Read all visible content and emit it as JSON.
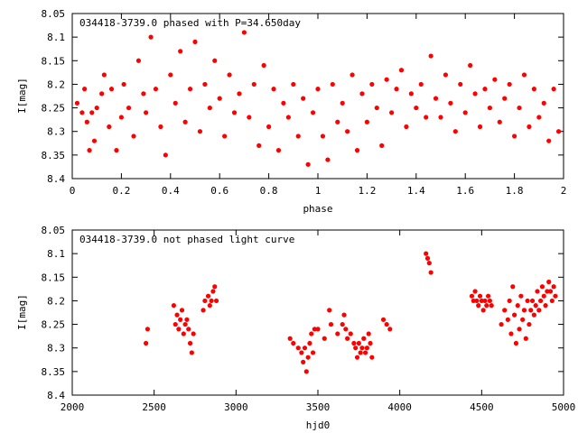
{
  "chart_data": [
    {
      "type": "scatter",
      "title": "034418-3739.0 phased with P=34.650day",
      "xlabel": "phase",
      "ylabel": "I[mag]",
      "xlim": [
        0,
        2
      ],
      "ylim": [
        8.4,
        8.05
      ],
      "y_inverted": true,
      "x_ticks": [
        "0",
        "0.2",
        "0.4",
        "0.6",
        "0.8",
        "1",
        "1.2",
        "1.4",
        "1.6",
        "1.8",
        "2"
      ],
      "y_ticks": [
        "8.05",
        "8.1",
        "8.15",
        "8.2",
        "8.25",
        "8.3",
        "8.35",
        "8.4"
      ],
      "marker_color": "#ff0000",
      "grid": false,
      "series": [
        {
          "points": [
            [
              0.02,
              8.24
            ],
            [
              0.04,
              8.26
            ],
            [
              0.05,
              8.21
            ],
            [
              0.06,
              8.28
            ],
            [
              0.07,
              8.34
            ],
            [
              0.08,
              8.26
            ],
            [
              0.09,
              8.32
            ],
            [
              0.1,
              8.25
            ],
            [
              0.12,
              8.22
            ],
            [
              0.13,
              8.18
            ],
            [
              0.15,
              8.29
            ],
            [
              0.16,
              8.21
            ],
            [
              0.18,
              8.34
            ],
            [
              0.2,
              8.27
            ],
            [
              0.21,
              8.2
            ],
            [
              0.23,
              8.25
            ],
            [
              0.25,
              8.31
            ],
            [
              0.27,
              8.15
            ],
            [
              0.29,
              8.22
            ],
            [
              0.3,
              8.26
            ],
            [
              0.32,
              8.1
            ],
            [
              0.34,
              8.21
            ],
            [
              0.36,
              8.29
            ],
            [
              0.38,
              8.35
            ],
            [
              0.4,
              8.18
            ],
            [
              0.42,
              8.24
            ],
            [
              0.44,
              8.13
            ],
            [
              0.46,
              8.28
            ],
            [
              0.48,
              8.21
            ],
            [
              0.5,
              8.11
            ],
            [
              0.52,
              8.3
            ],
            [
              0.54,
              8.2
            ],
            [
              0.56,
              8.25
            ],
            [
              0.58,
              8.15
            ],
            [
              0.6,
              8.23
            ],
            [
              0.62,
              8.31
            ],
            [
              0.64,
              8.18
            ],
            [
              0.66,
              8.26
            ],
            [
              0.68,
              8.22
            ],
            [
              0.7,
              8.09
            ],
            [
              0.72,
              8.27
            ],
            [
              0.74,
              8.2
            ],
            [
              0.76,
              8.33
            ],
            [
              0.78,
              8.16
            ],
            [
              0.8,
              8.29
            ],
            [
              0.82,
              8.21
            ],
            [
              0.84,
              8.34
            ],
            [
              0.86,
              8.24
            ],
            [
              0.88,
              8.27
            ],
            [
              0.9,
              8.2
            ],
            [
              0.92,
              8.31
            ],
            [
              0.94,
              8.23
            ],
            [
              0.96,
              8.37
            ],
            [
              0.98,
              8.26
            ],
            [
              1.0,
              8.21
            ],
            [
              1.02,
              8.31
            ],
            [
              1.04,
              8.36
            ],
            [
              1.06,
              8.2
            ],
            [
              1.08,
              8.28
            ],
            [
              1.1,
              8.24
            ],
            [
              1.12,
              8.3
            ],
            [
              1.14,
              8.18
            ],
            [
              1.16,
              8.34
            ],
            [
              1.18,
              8.22
            ],
            [
              1.2,
              8.28
            ],
            [
              1.22,
              8.2
            ],
            [
              1.24,
              8.25
            ],
            [
              1.26,
              8.33
            ],
            [
              1.28,
              8.19
            ],
            [
              1.3,
              8.26
            ],
            [
              1.32,
              8.21
            ],
            [
              1.34,
              8.17
            ],
            [
              1.36,
              8.29
            ],
            [
              1.38,
              8.22
            ],
            [
              1.4,
              8.25
            ],
            [
              1.42,
              8.2
            ],
            [
              1.44,
              8.27
            ],
            [
              1.46,
              8.14
            ],
            [
              1.48,
              8.23
            ],
            [
              1.5,
              8.27
            ],
            [
              1.52,
              8.18
            ],
            [
              1.54,
              8.24
            ],
            [
              1.56,
              8.3
            ],
            [
              1.58,
              8.2
            ],
            [
              1.6,
              8.26
            ],
            [
              1.62,
              8.16
            ],
            [
              1.64,
              8.22
            ],
            [
              1.66,
              8.29
            ],
            [
              1.68,
              8.21
            ],
            [
              1.7,
              8.25
            ],
            [
              1.72,
              8.19
            ],
            [
              1.74,
              8.28
            ],
            [
              1.76,
              8.23
            ],
            [
              1.78,
              8.2
            ],
            [
              1.8,
              8.31
            ],
            [
              1.82,
              8.25
            ],
            [
              1.84,
              8.18
            ],
            [
              1.86,
              8.29
            ],
            [
              1.88,
              8.21
            ],
            [
              1.9,
              8.27
            ],
            [
              1.92,
              8.24
            ],
            [
              1.94,
              8.32
            ],
            [
              1.96,
              8.21
            ],
            [
              1.98,
              8.3
            ]
          ]
        }
      ]
    },
    {
      "type": "scatter",
      "title": "034418-3739.0 not phased light curve",
      "xlabel": "hjd0",
      "ylabel": "I[mag]",
      "xlim": [
        2000,
        5000
      ],
      "ylim": [
        8.4,
        8.05
      ],
      "y_inverted": true,
      "x_ticks": [
        "2000",
        "2500",
        "3000",
        "3500",
        "4000",
        "4500",
        "5000"
      ],
      "y_ticks": [
        "8.05",
        "8.1",
        "8.15",
        "8.2",
        "8.25",
        "8.3",
        "8.35",
        "8.4"
      ],
      "marker_color": "#ff0000",
      "grid": false,
      "series": [
        {
          "points": [
            [
              2450,
              8.29
            ],
            [
              2460,
              8.26
            ],
            [
              2620,
              8.21
            ],
            [
              2630,
              8.25
            ],
            [
              2640,
              8.23
            ],
            [
              2650,
              8.26
            ],
            [
              2660,
              8.24
            ],
            [
              2670,
              8.22
            ],
            [
              2680,
              8.27
            ],
            [
              2690,
              8.25
            ],
            [
              2700,
              8.24
            ],
            [
              2710,
              8.26
            ],
            [
              2720,
              8.29
            ],
            [
              2730,
              8.31
            ],
            [
              2740,
              8.27
            ],
            [
              2800,
              8.22
            ],
            [
              2810,
              8.2
            ],
            [
              2830,
              8.19
            ],
            [
              2840,
              8.21
            ],
            [
              2850,
              8.2
            ],
            [
              2860,
              8.18
            ],
            [
              2870,
              8.17
            ],
            [
              2880,
              8.2
            ],
            [
              3330,
              8.28
            ],
            [
              3350,
              8.29
            ],
            [
              3380,
              8.3
            ],
            [
              3400,
              8.31
            ],
            [
              3410,
              8.33
            ],
            [
              3420,
              8.3
            ],
            [
              3430,
              8.35
            ],
            [
              3440,
              8.32
            ],
            [
              3450,
              8.29
            ],
            [
              3460,
              8.27
            ],
            [
              3470,
              8.31
            ],
            [
              3480,
              8.26
            ],
            [
              3500,
              8.26
            ],
            [
              3540,
              8.28
            ],
            [
              3570,
              8.22
            ],
            [
              3580,
              8.25
            ],
            [
              3620,
              8.27
            ],
            [
              3650,
              8.25
            ],
            [
              3660,
              8.23
            ],
            [
              3670,
              8.26
            ],
            [
              3680,
              8.28
            ],
            [
              3700,
              8.27
            ],
            [
              3720,
              8.29
            ],
            [
              3730,
              8.3
            ],
            [
              3740,
              8.32
            ],
            [
              3750,
              8.29
            ],
            [
              3760,
              8.31
            ],
            [
              3770,
              8.3
            ],
            [
              3780,
              8.28
            ],
            [
              3790,
              8.31
            ],
            [
              3800,
              8.3
            ],
            [
              3810,
              8.27
            ],
            [
              3820,
              8.29
            ],
            [
              3830,
              8.32
            ],
            [
              3900,
              8.24
            ],
            [
              3920,
              8.25
            ],
            [
              3940,
              8.26
            ],
            [
              4160,
              8.1
            ],
            [
              4170,
              8.11
            ],
            [
              4180,
              8.12
            ],
            [
              4190,
              8.14
            ],
            [
              4440,
              8.19
            ],
            [
              4450,
              8.2
            ],
            [
              4460,
              8.18
            ],
            [
              4470,
              8.2
            ],
            [
              4480,
              8.21
            ],
            [
              4490,
              8.19
            ],
            [
              4500,
              8.2
            ],
            [
              4510,
              8.22
            ],
            [
              4520,
              8.2
            ],
            [
              4530,
              8.21
            ],
            [
              4540,
              8.19
            ],
            [
              4550,
              8.2
            ],
            [
              4560,
              8.21
            ],
            [
              4620,
              8.25
            ],
            [
              4640,
              8.22
            ],
            [
              4660,
              8.24
            ],
            [
              4670,
              8.2
            ],
            [
              4680,
              8.27
            ],
            [
              4690,
              8.17
            ],
            [
              4700,
              8.23
            ],
            [
              4710,
              8.29
            ],
            [
              4720,
              8.21
            ],
            [
              4730,
              8.26
            ],
            [
              4740,
              8.19
            ],
            [
              4750,
              8.24
            ],
            [
              4760,
              8.22
            ],
            [
              4770,
              8.28
            ],
            [
              4780,
              8.2
            ],
            [
              4790,
              8.25
            ],
            [
              4800,
              8.22
            ],
            [
              4810,
              8.2
            ],
            [
              4820,
              8.23
            ],
            [
              4830,
              8.21
            ],
            [
              4840,
              8.18
            ],
            [
              4850,
              8.22
            ],
            [
              4860,
              8.2
            ],
            [
              4870,
              8.17
            ],
            [
              4880,
              8.19
            ],
            [
              4890,
              8.21
            ],
            [
              4900,
              8.18
            ],
            [
              4910,
              8.16
            ],
            [
              4920,
              8.18
            ],
            [
              4930,
              8.2
            ],
            [
              4940,
              8.17
            ],
            [
              4950,
              8.19
            ]
          ]
        }
      ]
    }
  ]
}
